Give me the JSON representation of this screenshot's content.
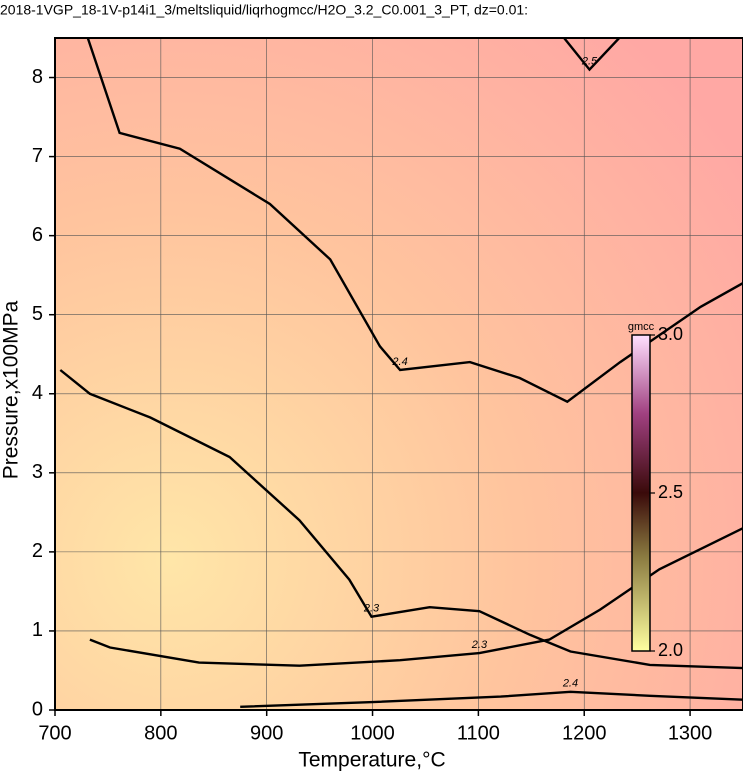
{
  "chart_data": {
    "type": "contour",
    "title": "2018-1VGP_18-1V-p14i1_3/meltsliquid/liqrhogmcc/H2O_3.2_C0.001_3_PT, dz=0.01:",
    "x_label": "Temperature,°C",
    "y_label": "Pressure,x100MPa",
    "xlim": [
      700,
      1350
    ],
    "ylim": [
      0,
      8.5
    ],
    "xticks": [
      700,
      800,
      900,
      1000,
      1100,
      1200,
      1300
    ],
    "yticks": [
      0,
      1,
      2,
      3,
      4,
      5,
      6,
      7,
      8
    ],
    "grid": true,
    "contours": [
      {
        "level": 2.4,
        "color": "#000000",
        "x": [
          731,
          761,
          818,
          903,
          960,
          1007,
          1026,
          1092,
          1139,
          1184,
          1234,
          1310,
          1350
        ],
        "y": [
          8.5,
          7.3,
          7.1,
          6.4,
          5.7,
          4.6,
          4.3,
          4.4,
          4.2,
          3.9,
          4.4,
          5.1,
          5.4
        ]
      },
      {
        "level": 2.3,
        "color": "#000000",
        "x": [
          705,
          733,
          790,
          865,
          931,
          978,
          999,
          1054,
          1101,
          1149,
          1187,
          1262,
          1350
        ],
        "y": [
          4.3,
          4.0,
          3.7,
          3.2,
          2.4,
          1.65,
          1.18,
          1.3,
          1.25,
          0.95,
          0.74,
          0.57,
          0.53
        ]
      },
      {
        "level": 2.3,
        "color": "#000000",
        "x": [
          733,
          752,
          836,
          931,
          1026,
          1101,
          1167,
          1215,
          1271,
          1350
        ],
        "y": [
          0.89,
          0.79,
          0.6,
          0.56,
          0.63,
          0.72,
          0.89,
          1.27,
          1.78,
          2.3
        ]
      },
      {
        "level": 2.4,
        "color": "#000000",
        "x": [
          875,
          1000,
          1121,
          1187,
          1262,
          1350
        ],
        "y": [
          0.04,
          0.1,
          0.17,
          0.23,
          0.18,
          0.13
        ]
      },
      {
        "level": 2.5,
        "color": "#000000",
        "x": [
          1181,
          1205,
          1233
        ],
        "y": [
          8.5,
          8.1,
          8.5
        ]
      }
    ],
    "colorbar": {
      "title": "gmcc",
      "lim": [
        2,
        3
      ],
      "ticks": [
        {
          "value": 2,
          "label": "2.0"
        },
        2.5,
        {
          "value": 3,
          "label": "3.0"
        }
      ]
    }
  }
}
